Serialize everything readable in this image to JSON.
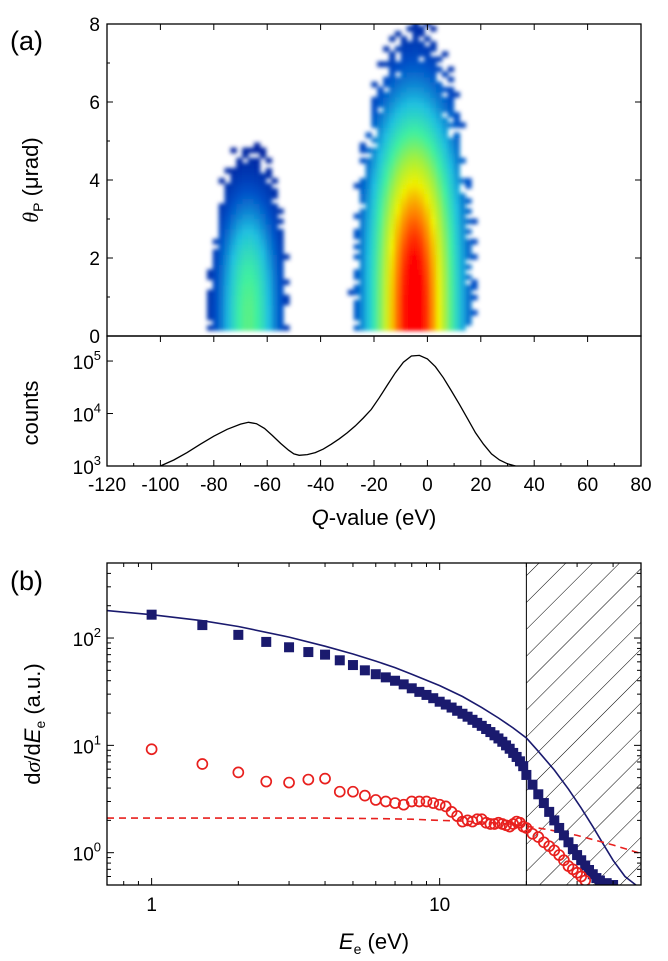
{
  "colors": {
    "blue_series": "#1a1a6e",
    "red_series": "#e8201e",
    "axis": "#000000",
    "colormap": [
      "#000080",
      "#0050c8",
      "#20c0e0",
      "#40f0a0",
      "#a0f040",
      "#f0f000",
      "#ff8000",
      "#ff0000"
    ]
  },
  "chart_data": [
    {
      "panel_label": "(a)",
      "type": "heatmap",
      "xlabel": "",
      "ylabel_symbol": "θ",
      "ylabel_subscript": "P",
      "ylabel_unit": " (μrad)",
      "xlim": [
        -120,
        80
      ],
      "ylim": [
        0,
        8
      ],
      "y_ticks": [
        "0",
        "2",
        "4",
        "6",
        "8"
      ],
      "blobs": [
        {
          "x_center": -67,
          "x_halfwidth": 15,
          "y_max": 4.8,
          "peak": 0.42
        },
        {
          "x_center": -5,
          "x_halfwidth": 22,
          "y_max": 7.8,
          "peak": 1.0
        }
      ]
    },
    {
      "type": "line",
      "xlabel_italic": "Q",
      "xlabel_rest": "-value (eV)",
      "ylabel": "counts",
      "xlim": [
        -120,
        80
      ],
      "ylim": [
        1000,
        300000
      ],
      "log_y": true,
      "x_ticks": [
        "-120",
        "-100",
        "-80",
        "-60",
        "-40",
        "-20",
        "0",
        "20",
        "40",
        "60",
        "80"
      ],
      "y_ticks": [
        {
          "base": "10",
          "exp": "3"
        },
        {
          "base": "10",
          "exp": "4"
        },
        {
          "base": "10",
          "exp": "5"
        }
      ],
      "series": [
        {
          "x": [
            -100,
            -95,
            -90,
            -85,
            -80,
            -75,
            -70,
            -67,
            -64,
            -61,
            -58,
            -55,
            -52,
            -50,
            -48,
            -45,
            -42,
            -39,
            -36,
            -33,
            -30,
            -27,
            -24,
            -21,
            -18,
            -15,
            -12,
            -9,
            -6,
            -3,
            0,
            3,
            6,
            9,
            12,
            15,
            18,
            21,
            24,
            27,
            30,
            33,
            36
          ],
          "y": [
            1000,
            1300,
            1800,
            2600,
            3700,
            5000,
            6300,
            6800,
            6400,
            5200,
            3800,
            2700,
            2000,
            1700,
            1600,
            1650,
            1800,
            2100,
            2600,
            3300,
            4300,
            5800,
            8200,
            12000,
            20000,
            35000,
            60000,
            95000,
            125000,
            128000,
            110000,
            78000,
            48000,
            27000,
            15000,
            8000,
            4300,
            2600,
            1700,
            1300,
            1100,
            1000,
            950
          ]
        }
      ]
    },
    {
      "panel_label": "(b)",
      "type": "scatter",
      "xlabel_italic": "E",
      "xlabel_sub": "e",
      "xlabel_rest": " (eV)",
      "ylabel_pre": "d",
      "ylabel_sigma": "σ",
      "ylabel_mid": "/d",
      "ylabel_italic": "E",
      "ylabel_sub": "e",
      "ylabel_rest": " (a.u.)",
      "xlim": [
        0.7,
        50
      ],
      "ylim": [
        0.5,
        500
      ],
      "log_x": true,
      "log_y": true,
      "x_ticks": [
        "1",
        "10"
      ],
      "y_ticks": [
        {
          "base": "10",
          "exp": "0"
        },
        {
          "base": "10",
          "exp": "1"
        },
        {
          "base": "10",
          "exp": "2"
        }
      ],
      "hatch_region": {
        "x_from": 20,
        "x_to": 50
      },
      "series": [
        {
          "marker": "filled-square",
          "x": [
            1,
            1.5,
            2,
            2.5,
            3,
            3.5,
            4,
            4.5,
            5,
            5.5,
            6,
            6.5,
            7,
            7.5,
            8,
            8.5,
            9,
            9.5,
            10,
            10.5,
            11,
            11.5,
            12,
            12.5,
            13,
            13.5,
            14,
            14.5,
            15,
            15.5,
            16,
            16.5,
            17,
            17.5,
            18,
            18.5,
            19,
            19.5,
            20,
            21,
            22,
            23,
            24,
            25,
            26,
            27,
            28,
            29,
            30,
            31,
            32,
            33,
            34,
            35,
            36,
            38,
            40
          ],
          "y": [
            165,
            132,
            107,
            92,
            82,
            74,
            70,
            62,
            56,
            50,
            46,
            43,
            40,
            37,
            34,
            31.5,
            29.5,
            27.5,
            25.5,
            24,
            22.5,
            21,
            19.7,
            18.5,
            17.3,
            16.2,
            15.2,
            14.2,
            13.3,
            12.4,
            11.6,
            10.8,
            10,
            9.3,
            8.5,
            7.8,
            7.1,
            6.4,
            5.3,
            4.3,
            3.5,
            2.9,
            2.4,
            2.0,
            1.7,
            1.45,
            1.25,
            1.08,
            0.95,
            0.85,
            0.76,
            0.69,
            0.63,
            0.58,
            0.55,
            0.52,
            0.5
          ]
        },
        {
          "marker": "open-circle",
          "x": [
            1,
            1.5,
            2,
            2.5,
            3,
            3.5,
            4,
            4.5,
            5,
            5.5,
            6,
            6.5,
            7,
            7.5,
            8,
            8.5,
            9,
            9.5,
            10,
            10.5,
            11,
            11.5,
            12,
            12.5,
            13,
            13.5,
            14,
            14.5,
            15,
            15.5,
            16,
            16.5,
            17,
            17.5,
            18,
            18.5,
            19,
            19.5,
            20,
            21,
            22,
            23,
            24,
            25,
            26,
            27,
            28,
            29,
            30,
            31,
            32
          ],
          "y": [
            9.2,
            6.7,
            5.6,
            4.6,
            4.5,
            4.8,
            4.9,
            3.7,
            3.7,
            3.4,
            3.1,
            3.0,
            2.9,
            2.8,
            3.0,
            3.0,
            3.0,
            2.9,
            2.8,
            2.7,
            2.4,
            2.2,
            1.95,
            2.0,
            1.95,
            2.05,
            2.05,
            1.9,
            1.85,
            1.85,
            1.9,
            1.85,
            1.8,
            1.75,
            1.85,
            1.95,
            1.9,
            1.75,
            1.7,
            1.5,
            1.4,
            1.25,
            1.15,
            1.05,
            0.95,
            0.85,
            0.75,
            0.7,
            0.65,
            0.6,
            0.55
          ]
        },
        {
          "marker": "solid-line",
          "x": [
            0.7,
            1,
            1.5,
            2,
            3,
            4,
            5,
            6,
            7,
            8,
            10,
            12,
            14,
            16,
            18,
            20,
            22,
            25,
            28,
            31,
            34,
            37,
            40,
            44,
            48
          ],
          "y": [
            180,
            165,
            145,
            128,
            102,
            84,
            71,
            61,
            53,
            46,
            36,
            28.5,
            22.5,
            18,
            14.5,
            11.7,
            8.8,
            5.9,
            3.9,
            2.6,
            1.75,
            1.2,
            0.85,
            0.6,
            0.5
          ]
        },
        {
          "marker": "dashed-line",
          "x": [
            0.7,
            1,
            2,
            4,
            6,
            8,
            10,
            12,
            14,
            16,
            18,
            20,
            22,
            25,
            30,
            35,
            40,
            45,
            50
          ],
          "y": [
            2.1,
            2.1,
            2.1,
            2.1,
            2.08,
            2.05,
            2.0,
            1.97,
            1.93,
            1.88,
            1.83,
            1.76,
            1.7,
            1.6,
            1.45,
            1.3,
            1.18,
            1.07,
            0.98
          ]
        }
      ]
    }
  ]
}
